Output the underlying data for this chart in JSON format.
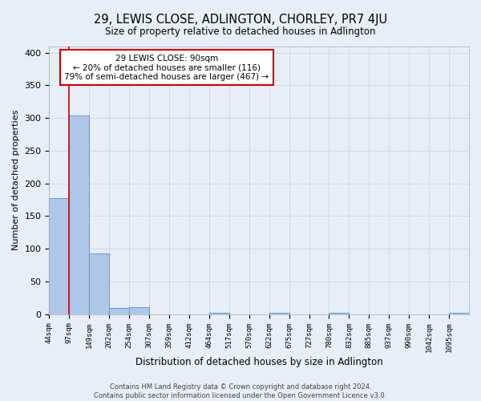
{
  "title": "29, LEWIS CLOSE, ADLINGTON, CHORLEY, PR7 4JU",
  "subtitle": "Size of property relative to detached houses in Adlington",
  "xlabel": "Distribution of detached houses by size in Adlington",
  "ylabel": "Number of detached properties",
  "bin_labels": [
    "44sqm",
    "97sqm",
    "149sqm",
    "202sqm",
    "254sqm",
    "307sqm",
    "359sqm",
    "412sqm",
    "464sqm",
    "517sqm",
    "570sqm",
    "622sqm",
    "675sqm",
    "727sqm",
    "780sqm",
    "832sqm",
    "885sqm",
    "937sqm",
    "990sqm",
    "1042sqm",
    "1095sqm"
  ],
  "bar_heights": [
    178,
    304,
    93,
    9,
    10,
    0,
    0,
    0,
    2,
    0,
    0,
    2,
    0,
    0,
    2,
    0,
    0,
    0,
    0,
    0,
    2
  ],
  "bar_color": "#aec6e8",
  "bar_edge_color": "#5b9bd5",
  "property_line_x": 1.0,
  "property_line_label": "29 LEWIS CLOSE: 90sqm",
  "annotation_line1": "← 20% of detached houses are smaller (116)",
  "annotation_line2": "79% of semi-detached houses are larger (467) →",
  "annotation_box_color": "#ffffff",
  "annotation_box_edge": "#cc0000",
  "vline_color": "#cc0000",
  "ylim": [
    0,
    410
  ],
  "yticks": [
    0,
    50,
    100,
    150,
    200,
    250,
    300,
    350,
    400
  ],
  "grid_color": "#c8d4e8",
  "background_color": "#e8eef7",
  "footer_line1": "Contains HM Land Registry data © Crown copyright and database right 2024.",
  "footer_line2": "Contains public sector information licensed under the Open Government Licence v3.0."
}
